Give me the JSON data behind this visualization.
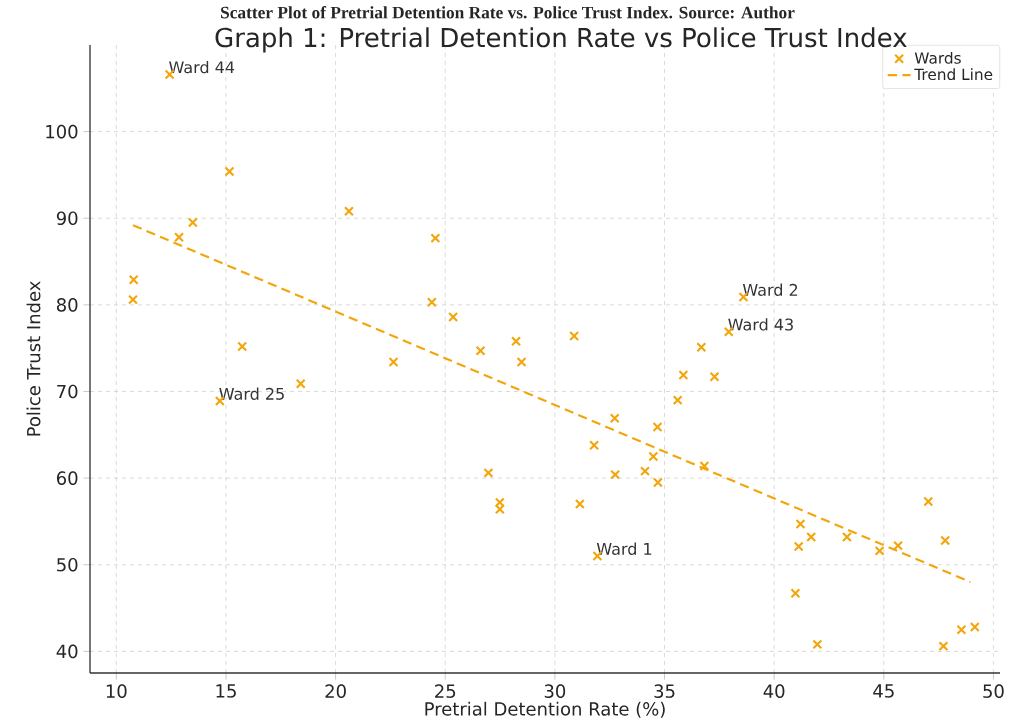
{
  "chart_data": {
    "type": "scatter",
    "title": "Graph 1: Pretrial Detention Rate vs Police Trust Index",
    "xlabel": "Pretrial Detention Rate (%)",
    "ylabel": "Police Trust Index",
    "xlim": [
      8.8,
      50.3
    ],
    "ylim": [
      37.5,
      110
    ],
    "xticks": [
      10,
      15,
      20,
      25,
      30,
      35,
      40,
      45,
      50
    ],
    "yticks": [
      40,
      50,
      60,
      70,
      80,
      90,
      100
    ],
    "grid": true,
    "legend": "top right",
    "series": [
      {
        "name": "Wards",
        "color": "#f2a60c",
        "marker": "cross",
        "x": [
          12.43,
          15.16,
          20.61,
          13.49,
          12.86,
          10.79,
          10.76,
          15.74,
          22.64,
          14.72,
          18.41,
          24.55,
          24.39,
          25.36,
          26.61,
          28.23,
          28.48,
          30.88,
          36.68,
          37.93,
          38.6,
          35.86,
          37.28,
          35.6,
          32.73,
          34.68,
          31.79,
          34.49,
          36.82,
          26.97,
          32.75,
          34.11,
          34.7,
          27.49,
          27.49,
          31.14,
          31.94,
          41.2,
          41.12,
          41.69,
          43.32,
          44.81,
          45.65,
          47.03,
          47.8,
          40.97,
          41.97,
          47.72,
          48.54,
          49.15
        ],
        "values": [
          106.6,
          95.4,
          90.8,
          89.5,
          87.8,
          82.9,
          80.6,
          75.2,
          73.4,
          68.9,
          70.9,
          87.7,
          80.3,
          78.6,
          74.7,
          75.8,
          73.4,
          76.4,
          75.1,
          76.9,
          80.9,
          71.9,
          71.7,
          69.0,
          66.9,
          65.9,
          63.8,
          62.5,
          61.4,
          60.6,
          60.4,
          60.8,
          59.5,
          57.2,
          56.4,
          57.0,
          51.0,
          54.7,
          52.1,
          53.2,
          53.2,
          51.6,
          52.2,
          57.3,
          52.8,
          46.7,
          40.8,
          40.6,
          42.5,
          42.8
        ]
      },
      {
        "name": "Trend Line",
        "type": "line",
        "color": "#f2a60c",
        "line_style": "dashed",
        "x": [
          10.76,
          48.95
        ],
        "values": [
          89.2,
          48.0
        ]
      }
    ],
    "annotations": [
      {
        "text": "Ward 44",
        "x": 12.43,
        "y": 106.6
      },
      {
        "text": "Ward 2",
        "x": 38.6,
        "y": 80.9
      },
      {
        "text": "Ward 43",
        "x": 37.93,
        "y": 76.9
      },
      {
        "text": "Ward 25",
        "x": 14.72,
        "y": 68.9
      },
      {
        "text": "Ward 1",
        "x": 31.94,
        "y": 51.0
      },
      "Scatter Plot of Pretrial Detention Rate vs. Police Trust Index. Source: Author"
    ]
  }
}
